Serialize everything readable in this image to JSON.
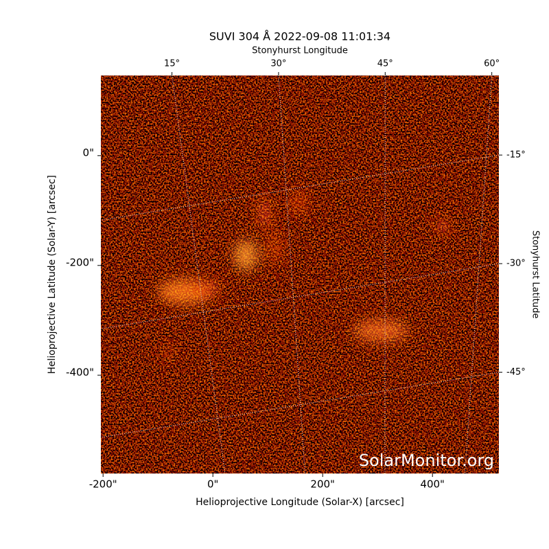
{
  "chart_data": {
    "type": "image",
    "title": "SUVI 304 Å 2022-09-08 11:01:34",
    "xlabel": "Helioprojective Longitude (Solar-X) [arcsec]",
    "ylabel": "Helioprojective Latitude (Solar-Y) [arcsec]",
    "x2label": "Stonyhurst Longitude",
    "y2label": "Stonyhurst Latitude",
    "watermark": "SolarMonitor.org",
    "xlim": [
      -204,
      521
    ],
    "ylim": [
      -579,
      146
    ],
    "xticks": [
      {
        "value": -200,
        "label": "-200\""
      },
      {
        "value": 0,
        "label": "0\""
      },
      {
        "value": 200,
        "label": "200\""
      },
      {
        "value": 400,
        "label": "400\""
      }
    ],
    "yticks": [
      {
        "value": 0,
        "label": "0\""
      },
      {
        "value": -200,
        "label": "-200\""
      },
      {
        "value": -400,
        "label": "-400\""
      }
    ],
    "x2lim": [
      5,
      61
    ],
    "x2ticks": [
      {
        "value": 15,
        "label": "15°"
      },
      {
        "value": 30,
        "label": "30°"
      },
      {
        "value": 45,
        "label": "45°"
      },
      {
        "value": 60,
        "label": "60°"
      }
    ],
    "y2lim": [
      -4,
      -59
    ],
    "y2ticks": [
      {
        "value": -15,
        "label": "-15°"
      },
      {
        "value": -30,
        "label": "-30°"
      },
      {
        "value": -45,
        "label": "-45°"
      }
    ],
    "grid": true
  }
}
